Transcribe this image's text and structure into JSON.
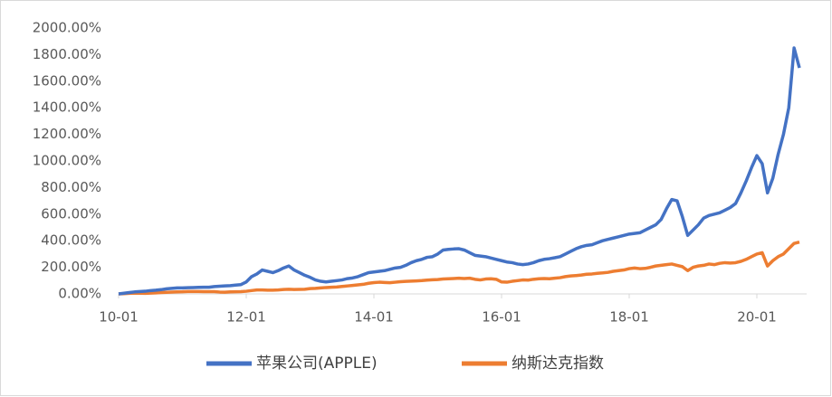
{
  "chart_data": {
    "type": "line",
    "categories": [
      "10-01",
      null,
      null,
      null,
      null,
      null,
      null,
      null,
      null,
      null,
      null,
      null,
      null,
      null,
      null,
      null,
      null,
      null,
      null,
      null,
      null,
      null,
      null,
      null,
      "12-01",
      null,
      null,
      null,
      null,
      null,
      null,
      null,
      null,
      null,
      null,
      null,
      null,
      null,
      null,
      null,
      null,
      null,
      null,
      null,
      null,
      null,
      null,
      null,
      "14-01",
      null,
      null,
      null,
      null,
      null,
      null,
      null,
      null,
      null,
      null,
      null,
      null,
      null,
      null,
      null,
      null,
      null,
      null,
      null,
      null,
      null,
      null,
      null,
      "16-01",
      null,
      null,
      null,
      null,
      null,
      null,
      null,
      null,
      null,
      null,
      null,
      null,
      null,
      null,
      null,
      null,
      null,
      null,
      null,
      null,
      null,
      null,
      null,
      "18-01",
      null,
      null,
      null,
      null,
      null,
      null,
      null,
      null,
      null,
      null,
      null,
      null,
      null,
      null,
      null,
      null,
      null,
      null,
      null,
      null,
      null,
      null,
      null,
      "20-01",
      null,
      null,
      null,
      null,
      null,
      null,
      null,
      null
    ],
    "series": [
      {
        "name": "苹果公司(APPLE)",
        "color": "#4472c4",
        "values": [
          0,
          5,
          10,
          15,
          18,
          20,
          25,
          28,
          32,
          38,
          42,
          45,
          45,
          47,
          48,
          49,
          50,
          50,
          55,
          58,
          60,
          62,
          66,
          70,
          90,
          130,
          150,
          180,
          170,
          160,
          175,
          195,
          210,
          180,
          160,
          140,
          125,
          105,
          95,
          90,
          95,
          100,
          105,
          115,
          120,
          130,
          145,
          160,
          165,
          170,
          175,
          185,
          195,
          200,
          215,
          235,
          250,
          260,
          275,
          280,
          300,
          330,
          335,
          338,
          340,
          330,
          310,
          290,
          285,
          280,
          270,
          260,
          250,
          240,
          235,
          225,
          220,
          225,
          235,
          250,
          260,
          265,
          272,
          280,
          300,
          320,
          340,
          355,
          365,
          370,
          385,
          400,
          410,
          420,
          430,
          440,
          450,
          455,
          460,
          480,
          500,
          520,
          560,
          640,
          710,
          700,
          580,
          440,
          480,
          520,
          570,
          590,
          600,
          610,
          630,
          650,
          680,
          760,
          850,
          950,
          1040,
          980,
          760,
          870,
          1050,
          1200,
          1400,
          1850,
          1700
        ]
      },
      {
        "name": "纳斯达克指数",
        "color": "#ed7d31",
        "values": [
          0,
          2,
          4,
          6,
          5,
          4,
          6,
          8,
          10,
          12,
          14,
          15,
          16,
          18,
          18,
          18,
          17,
          17,
          17,
          14,
          13,
          15,
          16,
          17,
          20,
          25,
          30,
          30,
          28,
          28,
          30,
          33,
          35,
          33,
          34,
          35,
          40,
          42,
          45,
          48,
          50,
          52,
          56,
          60,
          64,
          68,
          72,
          80,
          85,
          88,
          86,
          84,
          88,
          92,
          94,
          96,
          98,
          100,
          104,
          106,
          108,
          112,
          114,
          116,
          118,
          116,
          118,
          110,
          105,
          112,
          114,
          110,
          90,
          88,
          95,
          100,
          105,
          104,
          110,
          114,
          116,
          114,
          118,
          122,
          130,
          135,
          138,
          142,
          148,
          150,
          155,
          158,
          162,
          170,
          175,
          180,
          190,
          195,
          190,
          192,
          200,
          210,
          215,
          220,
          225,
          215,
          205,
          175,
          200,
          210,
          215,
          225,
          220,
          230,
          235,
          232,
          235,
          245,
          260,
          280,
          300,
          310,
          210,
          250,
          280,
          300,
          340,
          380,
          390
        ]
      }
    ],
    "ylim": [
      0,
      2000
    ],
    "yticks": [
      {
        "value": 0,
        "label": "0.00%"
      },
      {
        "value": 200,
        "label": "200.00%"
      },
      {
        "value": 400,
        "label": "400.00%"
      },
      {
        "value": 600,
        "label": "600.00%"
      },
      {
        "value": 800,
        "label": "800.00%"
      },
      {
        "value": 1000,
        "label": "1000.00%"
      },
      {
        "value": 1200,
        "label": "1200.00%"
      },
      {
        "value": 1400,
        "label": "1400.00%"
      },
      {
        "value": 1600,
        "label": "1600.00%"
      },
      {
        "value": 1800,
        "label": "1800.00%"
      },
      {
        "value": 2000,
        "label": "2000.00%"
      }
    ],
    "grid": false,
    "legend": "bottom"
  }
}
